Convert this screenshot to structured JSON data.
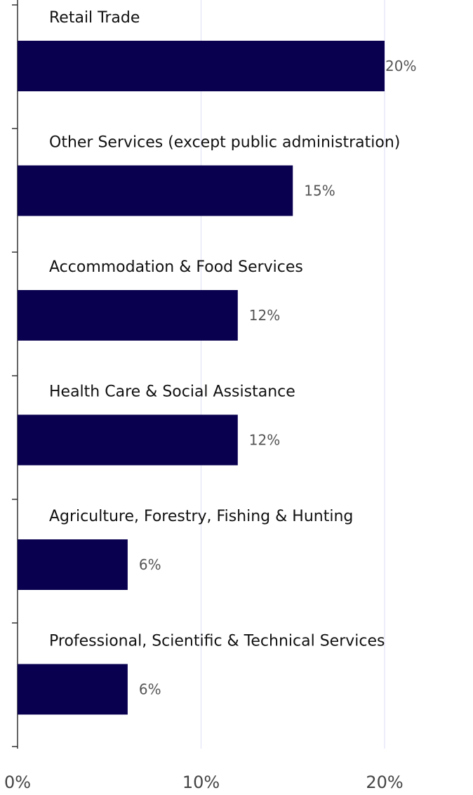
{
  "chart_data": {
    "type": "bar",
    "orientation": "horizontal",
    "categories": [
      "Retail Trade",
      "Other Services (except public administration)",
      "Accommodation  & Food Services",
      "Health Care & Social Assistance",
      "Agriculture, Forestry, Fishing & Hunting",
      "Professional, Scientific & Technical Services"
    ],
    "values": [
      20,
      15,
      12,
      12,
      6,
      6
    ],
    "value_labels": [
      "20%",
      "15%",
      "12%",
      "12%",
      "6%",
      "6%"
    ],
    "x_ticks": [
      0,
      10,
      20
    ],
    "x_tick_labels": [
      "0%",
      "10%",
      "20%"
    ],
    "xlim": [
      0,
      20
    ],
    "title": "",
    "xlabel": "",
    "ylabel": "",
    "grid": "vertical",
    "legend": "none",
    "colors": {
      "bar": "#0a0050",
      "grid": "#ddddf5",
      "axis": "#333333"
    }
  }
}
